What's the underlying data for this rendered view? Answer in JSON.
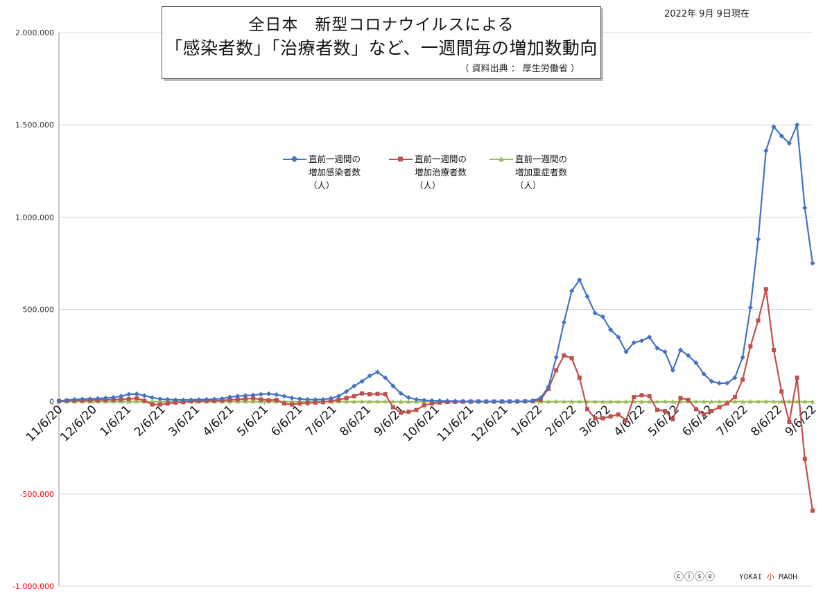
{
  "title": {
    "line1": "全日本　新型コロナウイルスによる",
    "line2": "「感染者数」「治療者数」など、一週間毎の増加数動向",
    "source": "（ 資料出典 ： 厚生労働省 ）"
  },
  "date_stamp": "2022年 9月 9日現在",
  "footer": {
    "license_icons": "ⓒⓘⓢⓔ",
    "brand_pre": "YOKAI ",
    "brand_mid": "小",
    "brand_post": " MAOH"
  },
  "colors": {
    "infected": "#4472C4",
    "treatment": "#C0504D",
    "severe": "#9BBB59",
    "negative_tick": "#FF0000",
    "grid": "#D9D9D9"
  },
  "chart_data": {
    "type": "line",
    "ylim": [
      -1000000,
      2000000
    ],
    "y_ticks": [
      2000000,
      1500000,
      1000000,
      500000,
      0,
      -500000,
      -1000000
    ],
    "y_tick_labels": [
      "2.000.000",
      "1.500.000",
      "1.000.000",
      "500.000",
      "0",
      "-500.000",
      "-1.000.000"
    ],
    "x_tick_labels": [
      "11/6/20",
      "12/6/20",
      "1/6/21",
      "2/6/21",
      "3/6/21",
      "4/6/21",
      "5/6/21",
      "6/6/21",
      "7/6/21",
      "8/6/21",
      "9/6/21",
      "10/6/21",
      "11/6/21",
      "12/6/21",
      "1/6/22",
      "2/6/22",
      "3/6/22",
      "4/6/22",
      "5/6/22",
      "6/6/22",
      "7/6/22",
      "8/6/22",
      "9/6/22"
    ],
    "legend_position": "top-center",
    "series": [
      {
        "name": "直前一週間の\n増加感染者数\n（人）",
        "marker": "diamond",
        "values": [
          5000,
          8000,
          12000,
          14000,
          15000,
          17000,
          20000,
          23000,
          30000,
          40000,
          42000,
          33000,
          22000,
          15000,
          12000,
          10000,
          9000,
          10000,
          11000,
          12000,
          14000,
          16000,
          25000,
          30000,
          33000,
          36000,
          40000,
          43000,
          38000,
          30000,
          20000,
          15000,
          12000,
          11000,
          12000,
          18000,
          30000,
          55000,
          85000,
          110000,
          140000,
          160000,
          130000,
          85000,
          45000,
          22000,
          12000,
          8000,
          6000,
          5000,
          4000,
          3000,
          2000,
          1500,
          1200,
          1000,
          1000,
          1100,
          1200,
          1400,
          2000,
          5000,
          20000,
          80000,
          240000,
          430000,
          600000,
          660000,
          570000,
          480000,
          460000,
          390000,
          350000,
          270000,
          320000,
          330000,
          350000,
          290000,
          270000,
          170000,
          280000,
          250000,
          210000,
          150000,
          110000,
          100000,
          100000,
          130000,
          240000,
          510000,
          880000,
          1360000,
          1490000,
          1440000,
          1400000,
          1500000,
          1050000,
          750000
        ]
      },
      {
        "name": "直前一週間の\n増加治療者数\n（人）",
        "marker": "square",
        "values": [
          3000,
          5000,
          6000,
          7000,
          8000,
          9000,
          10000,
          11000,
          12000,
          14000,
          18000,
          5000,
          -15000,
          -15000,
          -10000,
          -5000,
          -3000,
          2000,
          3000,
          4000,
          5000,
          7000,
          10000,
          12000,
          15000,
          18000,
          12000,
          8000,
          10000,
          -10000,
          -15000,
          -10000,
          -8000,
          -5000,
          -3000,
          5000,
          10000,
          20000,
          30000,
          45000,
          40000,
          42000,
          40000,
          -30000,
          -60000,
          -55000,
          -45000,
          -20000,
          -10000,
          -5000,
          -2000,
          -1000,
          0,
          500,
          800,
          500,
          600,
          700,
          800,
          1000,
          1500,
          3000,
          10000,
          70000,
          170000,
          250000,
          235000,
          130000,
          -40000,
          -90000,
          -90000,
          -80000,
          -70000,
          -100000,
          25000,
          35000,
          30000,
          -45000,
          -50000,
          -95000,
          20000,
          10000,
          -40000,
          -70000,
          -50000,
          -30000,
          -10000,
          25000,
          120000,
          300000,
          440000,
          610000,
          280000,
          55000,
          -110000,
          130000,
          -310000,
          -590000
        ]
      },
      {
        "name": "直前一週間の\n増加重症者数\n（人）",
        "marker": "triangle",
        "values": [
          50,
          60,
          70,
          80,
          90,
          100,
          120,
          150,
          200,
          250,
          300,
          250,
          150,
          100,
          50,
          20,
          0,
          -50,
          -60,
          -40,
          -20,
          0,
          50,
          100,
          150,
          200,
          150,
          100,
          50,
          0,
          -50,
          -100,
          -80,
          -60,
          -40,
          0,
          50,
          100,
          200,
          300,
          400,
          300,
          200,
          0,
          -200,
          -300,
          -200,
          -100,
          -50,
          -20,
          -10,
          0,
          0,
          0,
          0,
          0,
          0,
          0,
          0,
          0,
          10,
          50,
          100,
          200,
          400,
          500,
          400,
          300,
          100,
          -100,
          -200,
          -300,
          -300,
          -200,
          -100,
          0,
          0,
          0,
          0,
          0,
          0,
          0,
          0,
          0,
          0,
          0,
          0,
          50,
          100,
          200,
          400,
          500,
          400,
          300,
          100,
          0,
          -100,
          -200
        ]
      }
    ]
  }
}
